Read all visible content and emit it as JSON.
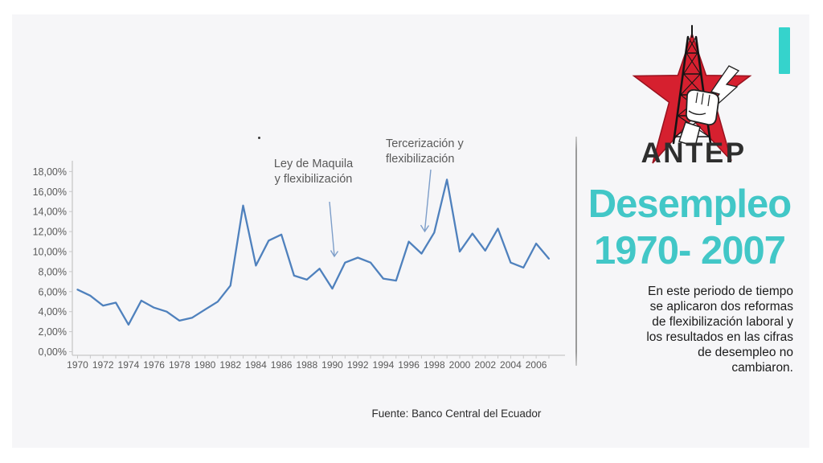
{
  "chart_data": {
    "type": "line",
    "title": "",
    "xlabel": "",
    "ylabel": "",
    "x": [
      1970,
      1971,
      1972,
      1973,
      1974,
      1975,
      1976,
      1977,
      1978,
      1979,
      1980,
      1981,
      1982,
      1983,
      1984,
      1985,
      1986,
      1987,
      1988,
      1989,
      1990,
      1991,
      1992,
      1993,
      1994,
      1995,
      1996,
      1997,
      1998,
      1999,
      2000,
      2001,
      2002,
      2003,
      2004,
      2005,
      2006,
      2007
    ],
    "series": [
      {
        "name": "Desempleo",
        "values": [
          6.2,
          5.6,
          4.6,
          4.9,
          2.7,
          5.1,
          4.4,
          4.0,
          3.1,
          3.4,
          4.2,
          5.0,
          6.6,
          14.6,
          8.6,
          11.1,
          11.7,
          7.6,
          7.2,
          8.3,
          6.3,
          8.9,
          9.4,
          8.9,
          7.3,
          7.1,
          11.0,
          9.8,
          11.9,
          17.2,
          10.0,
          11.8,
          10.1,
          12.3,
          8.9,
          8.4,
          10.8,
          9.3
        ]
      }
    ],
    "ylim": [
      0,
      18
    ],
    "grid": "off",
    "legend": "none",
    "y_tick_values": [
      0,
      2,
      4,
      6,
      8,
      10,
      12,
      14,
      16,
      18
    ],
    "y_tick_labels": [
      "0,00%",
      "2,00%",
      "4,00%",
      "6,00%",
      "8,00%",
      "10,00%",
      "12,00%",
      "14,00%",
      "16,00%",
      "18,00%"
    ],
    "x_tick_labels": [
      "1970",
      "1972",
      "1974",
      "1976",
      "1978",
      "1980",
      "1982",
      "1984",
      "1986",
      "1988",
      "1990",
      "1992",
      "1994",
      "1996",
      "1998",
      "2000",
      "2002",
      "2004",
      "2006"
    ],
    "line_color": "#4f81bd",
    "axis_color": "#c8c8c8",
    "tick_text_color": "#595959",
    "arrow_color": "#7d9ec9",
    "annotations": [
      {
        "lines": [
          "Ley de Maquila",
          "y flexibilización"
        ],
        "target_year": 1990
      },
      {
        "lines": [
          "Tercerización y",
          "flexibilización"
        ],
        "target_year": 1998
      }
    ],
    "source": "Fuente: Banco Central del Ecuador"
  },
  "logo": {
    "text": "ANTEP",
    "star_color": "#d6202f",
    "star_edge_color": "#98111e",
    "tower_color": "#141414",
    "text_color": "#2e2e2e",
    "accent_bar_color": "#35d3cc"
  },
  "panel": {
    "title_lines": [
      "Desempleo",
      "1970- 2007"
    ],
    "title_color": "#42c7c7",
    "body_lines": [
      "En este periodo de tiempo",
      "se aplicaron dos reformas",
      "de flexibilización laboral y",
      "los resultados en las cifras",
      "de desempleo no",
      "cambiaron."
    ]
  }
}
